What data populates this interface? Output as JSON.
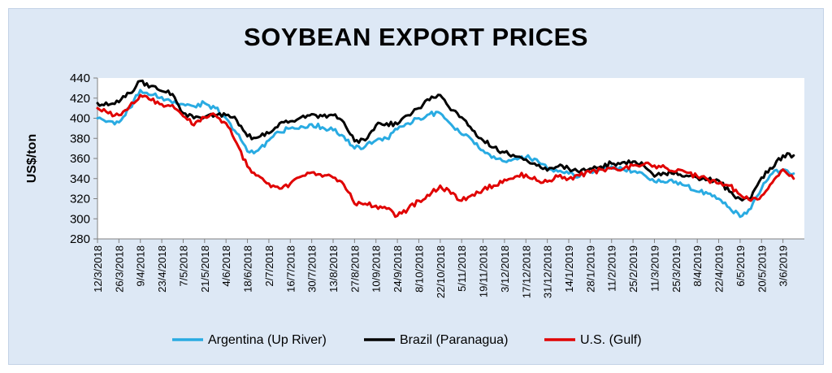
{
  "chart_data": {
    "type": "line",
    "title": "SOYBEAN EXPORT PRICES",
    "xlabel": "",
    "ylabel": "US$/ton",
    "ylim": [
      280,
      440
    ],
    "yticks": [
      280,
      300,
      320,
      340,
      360,
      380,
      400,
      420,
      440
    ],
    "grid": false,
    "legend_position": "bottom",
    "x_tick_labels": [
      "12/3/2018",
      "26/3/2018",
      "9/4/2018",
      "23/4/2018",
      "7/5/2018",
      "21/5/2018",
      "4/6/2018",
      "18/6/2018",
      "2/7/2018",
      "16/7/2018",
      "30/7/2018",
      "13/8/2018",
      "27/8/2018",
      "10/9/2018",
      "24/9/2018",
      "8/10/2018",
      "22/10/2018",
      "5/11/2018",
      "19/11/2018",
      "3/12/2018",
      "17/12/2018",
      "31/12/2018",
      "14/1/2019",
      "28/1/2019",
      "11/2/2019",
      "25/2/2019",
      "11/3/2019",
      "25/3/2019",
      "8/4/2019",
      "22/4/2019",
      "6/5/2019",
      "20/5/2019",
      "3/6/2019"
    ],
    "x": [
      "12/3/2018",
      "19/3/2018",
      "26/3/2018",
      "2/4/2018",
      "9/4/2018",
      "16/4/2018",
      "23/4/2018",
      "30/4/2018",
      "7/5/2018",
      "14/5/2018",
      "21/5/2018",
      "28/5/2018",
      "4/6/2018",
      "11/6/2018",
      "18/6/2018",
      "25/6/2018",
      "2/7/2018",
      "9/7/2018",
      "16/7/2018",
      "23/7/2018",
      "30/7/2018",
      "6/8/2018",
      "13/8/2018",
      "20/8/2018",
      "27/8/2018",
      "3/9/2018",
      "10/9/2018",
      "17/9/2018",
      "24/9/2018",
      "1/10/2018",
      "8/10/2018",
      "15/10/2018",
      "22/10/2018",
      "29/10/2018",
      "5/11/2018",
      "12/11/2018",
      "19/11/2018",
      "26/11/2018",
      "3/12/2018",
      "10/12/2018",
      "17/12/2018",
      "24/12/2018",
      "31/12/2018",
      "7/1/2019",
      "14/1/2019",
      "21/1/2019",
      "28/1/2019",
      "4/2/2019",
      "11/2/2019",
      "18/2/2019",
      "25/2/2019",
      "4/3/2019",
      "11/3/2019",
      "18/3/2019",
      "25/3/2019",
      "1/4/2019",
      "8/4/2019",
      "15/4/2019",
      "22/4/2019",
      "29/4/2019",
      "6/5/2019",
      "13/5/2019",
      "20/5/2019",
      "27/5/2019",
      "3/6/2019",
      "10/6/2019"
    ],
    "series": [
      {
        "name": "Argentina (Up River)",
        "color": "#29abe2",
        "values": [
          400,
          397,
          396,
          410,
          428,
          423,
          421,
          415,
          414,
          412,
          415,
          410,
          400,
          385,
          367,
          368,
          378,
          386,
          390,
          392,
          394,
          391,
          388,
          382,
          370,
          372,
          378,
          380,
          389,
          395,
          400,
          404,
          405,
          394,
          384,
          378,
          368,
          362,
          357,
          360,
          361,
          359,
          350,
          347,
          345,
          342,
          347,
          350,
          352,
          350,
          347,
          344,
          337,
          336,
          337,
          333,
          327,
          325,
          320,
          311,
          302,
          310,
          330,
          345,
          349,
          345
        ]
      },
      {
        "name": "Brazil (Paranagua)",
        "color": "#000000",
        "values": [
          415,
          413,
          416,
          425,
          437,
          432,
          427,
          424,
          405,
          400,
          401,
          403,
          403,
          398,
          382,
          381,
          385,
          395,
          397,
          401,
          404,
          402,
          403,
          396,
          377,
          378,
          393,
          395,
          394,
          403,
          410,
          418,
          423,
          408,
          401,
          388,
          378,
          371,
          366,
          362,
          359,
          353,
          348,
          352,
          350,
          346,
          350,
          352,
          355,
          356,
          357,
          353,
          342,
          345,
          347,
          343,
          341,
          339,
          338,
          327,
          320,
          320,
          341,
          350,
          363,
          363
        ]
      },
      {
        "name": "U.S. (Gulf)",
        "color": "#e00000",
        "values": [
          410,
          405,
          403,
          412,
          423,
          418,
          414,
          413,
          402,
          393,
          401,
          403,
          395,
          375,
          352,
          343,
          335,
          330,
          335,
          342,
          346,
          342,
          341,
          334,
          315,
          315,
          313,
          310,
          303,
          310,
          318,
          323,
          333,
          325,
          318,
          324,
          329,
          333,
          339,
          342,
          344,
          338,
          337,
          342,
          340,
          343,
          346,
          349,
          350,
          349,
          353,
          354,
          353,
          351,
          347,
          346,
          342,
          339,
          335,
          333,
          324,
          318,
          323,
          336,
          349,
          340
        ]
      }
    ]
  }
}
